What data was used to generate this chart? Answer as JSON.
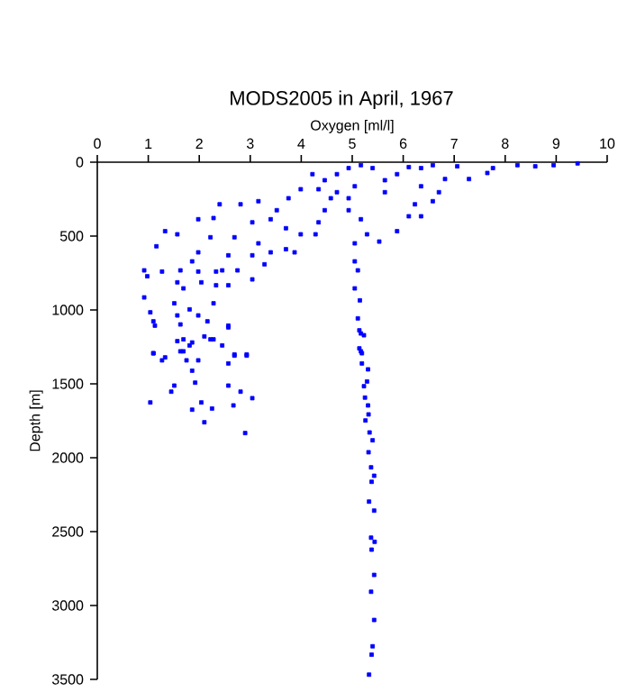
{
  "chart_data": {
    "type": "scatter",
    "title": "MODS2005 in April, 1967",
    "xlabel": "Oxygen [ml/l]",
    "ylabel": "Depth [m]",
    "x": [
      9.42,
      8.95,
      8.59,
      8.24,
      7.76,
      7.65,
      7.29,
      7.06,
      6.82,
      6.58,
      6.35,
      6.11,
      5.88,
      5.64,
      5.4,
      5.17,
      4.93,
      4.7,
      4.46,
      4.22,
      4.34,
      4.58,
      4.46,
      4.34,
      4.28,
      4.7,
      4.93,
      5.05,
      4.93,
      5.17,
      5.29,
      5.53,
      5.05,
      5.05,
      5.11,
      5.05,
      5.15,
      5.11,
      5.17,
      5.17,
      6.35,
      6.23,
      6.58,
      6.7,
      6.11,
      5.88,
      5.64,
      6.35,
      3.99,
      3.75,
      3.52,
      3.16,
      2.81,
      2.4,
      1.98,
      2.28,
      3.04,
      3.4,
      3.7,
      3.99,
      1.33,
      1.16,
      1.57,
      2.22,
      2.69,
      3.16,
      3.4,
      3.04,
      2.57,
      1.98,
      1.86,
      2.45,
      2.75,
      3.28,
      3.7,
      3.87,
      0.92,
      1.27,
      0.98,
      1.63,
      1.98,
      2.33,
      1.57,
      2.04,
      2.33,
      2.57,
      3.04,
      1.69,
      2.28,
      0.92,
      1.04,
      1.51,
      1.81,
      1.57,
      1.98,
      1.1,
      1.63,
      2.16,
      2.57,
      1.69,
      1.86,
      2.22,
      1.1,
      1.33,
      1.69,
      2.69,
      2.93,
      1.13,
      1.57,
      2.1,
      2.57,
      2.28,
      1.81,
      2.45,
      1.1,
      1.63,
      1.27,
      1.75,
      1.98,
      2.57,
      2.93,
      2.69,
      1.86,
      1.92,
      1.51,
      1.45,
      2.57,
      2.81,
      3.04,
      1.04,
      2.04,
      1.86,
      2.25,
      2.67,
      2.1,
      2.9,
      5.14,
      5.23,
      5.14,
      5.19,
      5.19,
      5.31,
      5.29,
      5.23,
      5.25,
      5.31,
      5.32,
      5.26,
      5.34,
      5.4,
      5.32,
      5.37,
      5.43,
      5.38,
      5.33,
      5.43,
      5.37,
      5.44,
      5.38,
      5.43,
      5.37,
      5.43,
      5.4,
      5.38,
      5.33
    ],
    "values": [
      8,
      20,
      28,
      20,
      40,
      73,
      114,
      28,
      114,
      20,
      40,
      33,
      81,
      122,
      40,
      20,
      40,
      81,
      122,
      81,
      183,
      244,
      325,
      407,
      488,
      203,
      244,
      163,
      325,
      386,
      488,
      537,
      549,
      671,
      732,
      854,
      935,
      1057,
      1159,
      1280,
      163,
      285,
      264,
      203,
      366,
      467,
      203,
      366,
      183,
      244,
      325,
      264,
      285,
      285,
      386,
      378,
      407,
      386,
      447,
      488,
      467,
      569,
      488,
      508,
      508,
      549,
      610,
      630,
      630,
      610,
      671,
      732,
      732,
      691,
      589,
      610,
      732,
      740,
      772,
      732,
      740,
      740,
      813,
      813,
      833,
      833,
      793,
      854,
      955,
      915,
      1016,
      955,
      996,
      1037,
      1037,
      1077,
      1098,
      1077,
      1118,
      1199,
      1220,
      1199,
      1293,
      1321,
      1280,
      1301,
      1301,
      1106,
      1211,
      1179,
      1106,
      1199,
      1240,
      1240,
      1293,
      1280,
      1341,
      1341,
      1341,
      1362,
      1309,
      1309,
      1411,
      1492,
      1512,
      1553,
      1512,
      1553,
      1597,
      1626,
      1626,
      1675,
      1667,
      1646,
      1760,
      1833,
      1138,
      1171,
      1260,
      1293,
      1362,
      1402,
      1484,
      1516,
      1593,
      1646,
      1707,
      1748,
      1829,
      1882,
      1963,
      2065,
      2122,
      2163,
      2297,
      2358,
      2541,
      2569,
      2622,
      2793,
      2907,
      3098,
      3276,
      3333,
      3468
    ],
    "color": "#0000ff",
    "marker": "square",
    "xlim": [
      0,
      10
    ],
    "xticks": [
      0,
      1,
      2,
      3,
      4,
      5,
      6,
      7,
      8,
      9,
      10
    ],
    "ylim": [
      3500,
      0
    ],
    "yticks": [
      0,
      500,
      1000,
      1500,
      2000,
      2500,
      3000,
      3500
    ]
  }
}
